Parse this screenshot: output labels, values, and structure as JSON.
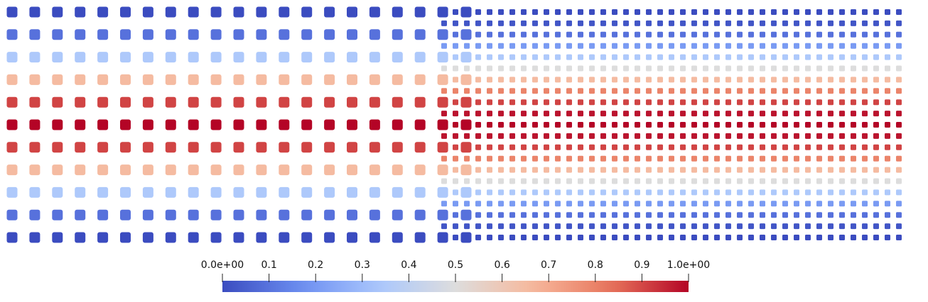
{
  "scene": {
    "colormap": "coolwarm",
    "colormap_stops": [
      "#3b4cc0",
      "#6b8df0",
      "#aac7fd",
      "#dddddd",
      "#f7b89c",
      "#e7745b",
      "#b40426"
    ],
    "background": "#ffffff",
    "coarse_grid": {
      "columns": 20,
      "rows": 11
    },
    "fine_grid": {
      "columns": 41,
      "rows": 21
    }
  },
  "colorbar": {
    "range": [
      0,
      1
    ],
    "tick_labels": [
      "0.0e+00",
      "0.1",
      "0.2",
      "0.3",
      "0.4",
      "0.5",
      "0.6",
      "0.7",
      "0.8",
      "0.9",
      "1.0e+00"
    ]
  }
}
